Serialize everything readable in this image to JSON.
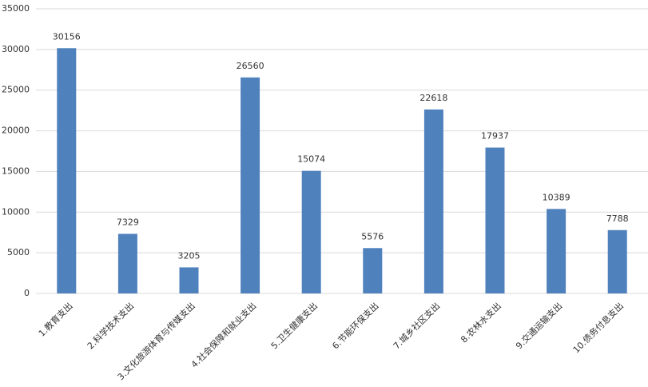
{
  "chart_data": {
    "type": "bar",
    "categories": [
      "1.教育支出",
      "2.科学技术支出",
      "3.文化旅游体育与传媒支出",
      "4.社会保障和就业支出",
      "5.卫生健康支出",
      "6.节能环保支出",
      "7.城乡社区支出",
      "8.农林水支出",
      "9.交通运输支出",
      "10.债务付息支出"
    ],
    "values": [
      30156,
      7329,
      3205,
      26560,
      15074,
      5576,
      22618,
      17937,
      10389,
      7788
    ],
    "color": "#4f81bd",
    "ylim": [
      0,
      35000
    ],
    "yticks": [
      0,
      5000,
      10000,
      15000,
      20000,
      25000,
      30000,
      35000
    ],
    "grid": true
  }
}
